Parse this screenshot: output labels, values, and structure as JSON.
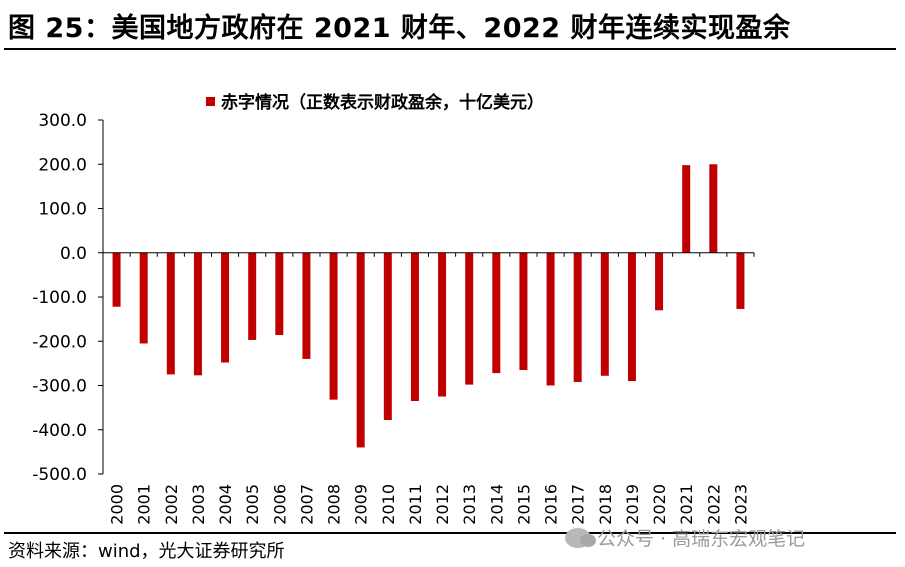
{
  "header": {
    "title": "图 25：美国地方政府在 2021 财年、2022 财年连续实现盈余"
  },
  "footer": {
    "source": "资料来源：wind，光大证券研究所",
    "watermark": "公众号 · 高瑞东宏观笔记"
  },
  "chart_data": {
    "type": "bar",
    "legend_position": "top-center",
    "grid": false,
    "ylim": [
      -500,
      300
    ],
    "yticks": [
      "300.0",
      "200.0",
      "100.0",
      "0.0",
      "-100.0",
      "-200.0",
      "-300.0",
      "-400.0",
      "-500.0"
    ],
    "yticks_values": [
      300,
      200,
      100,
      0,
      -100,
      -200,
      -300,
      -400,
      -500
    ],
    "categories": [
      "2000",
      "2001",
      "2002",
      "2003",
      "2004",
      "2005",
      "2006",
      "2007",
      "2008",
      "2009",
      "2010",
      "2011",
      "2012",
      "2013",
      "2014",
      "2015",
      "2016",
      "2017",
      "2018",
      "2019",
      "2020",
      "2021",
      "2022",
      "2023"
    ],
    "series": [
      {
        "name": "赤字情况（正数表示财政盈余，十亿美元）",
        "color": "#c00000",
        "values": [
          -122,
          -205,
          -275,
          -277,
          -248,
          -197,
          -186,
          -240,
          -332,
          -440,
          -378,
          -335,
          -325,
          -298,
          -272,
          -265,
          -300,
          -292,
          -278,
          -290,
          -130,
          198,
          200,
          -127
        ]
      }
    ]
  }
}
